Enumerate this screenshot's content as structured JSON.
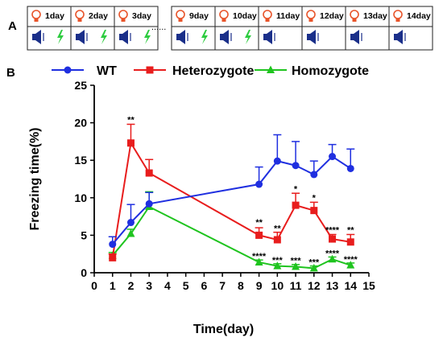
{
  "panel_labels": {
    "a": "A",
    "b": "B"
  },
  "timeline": {
    "days_left": [
      "1day",
      "2day",
      "3day"
    ],
    "separator": "......",
    "days_right": [
      "9day",
      "10day",
      "11day",
      "12day",
      "13day",
      "14day"
    ],
    "icons": {
      "top": "lightbulb-icon",
      "bottom_left": "speaker-icon",
      "bottom_right_shock": "lightning-icon"
    },
    "shock_days": [
      "1day",
      "2day",
      "3day",
      "9day",
      "10day"
    ],
    "colors": {
      "bulb": "#e8542a",
      "speaker": "#1a2f8a",
      "shock": "#2ecc40",
      "border": "#222222"
    }
  },
  "chart_data": {
    "type": "line",
    "xlabel": "Time(day)",
    "ylabel": "Freezing time(%)",
    "xlim": [
      0,
      15
    ],
    "ylim": [
      0,
      25
    ],
    "xticks": [
      0,
      1,
      2,
      3,
      4,
      5,
      6,
      7,
      8,
      9,
      10,
      11,
      12,
      13,
      14,
      15
    ],
    "yticks": [
      0,
      5,
      10,
      15,
      20,
      25
    ],
    "legend_position": "top",
    "grid": false,
    "x": [
      1,
      2,
      3,
      9,
      10,
      11,
      12,
      13,
      14
    ],
    "series": [
      {
        "name": "WT",
        "color": "#1f2fe0",
        "marker": "circle",
        "values": [
          3.8,
          6.7,
          9.2,
          11.8,
          14.9,
          14.3,
          13.1,
          15.5,
          13.9
        ],
        "errors": [
          1.0,
          2.4,
          1.5,
          2.3,
          3.5,
          3.2,
          1.8,
          1.6,
          2.6
        ]
      },
      {
        "name": "Heterozygote",
        "color": "#e81d1d",
        "marker": "square",
        "values": [
          2.0,
          17.3,
          13.3,
          5.0,
          4.4,
          9.0,
          8.3,
          4.5,
          4.1
        ],
        "errors": [
          0.5,
          2.5,
          1.8,
          1.0,
          1.0,
          1.6,
          1.1,
          0.6,
          1.0
        ]
      },
      {
        "name": "Homozygote",
        "color": "#1fc41f",
        "marker": "triangle",
        "values": [
          2.3,
          5.2,
          8.8,
          1.4,
          0.9,
          0.8,
          0.6,
          1.8,
          1.0
        ],
        "errors": [
          0.4,
          0.6,
          2.0,
          0.3,
          0.3,
          0.3,
          0.3,
          0.3,
          0.3
        ]
      }
    ],
    "annotations": [
      {
        "x": 2,
        "y": 19.9,
        "text": "**"
      },
      {
        "x": 9,
        "y": 6.2,
        "text": "**"
      },
      {
        "x": 10,
        "y": 5.4,
        "text": "**"
      },
      {
        "x": 11,
        "y": 10.7,
        "text": "*"
      },
      {
        "x": 12,
        "y": 9.5,
        "text": "*"
      },
      {
        "x": 13,
        "y": 5.2,
        "text": "****"
      },
      {
        "x": 14,
        "y": 5.2,
        "text": "**"
      },
      {
        "x": 9,
        "y": 1.7,
        "text": "****"
      },
      {
        "x": 10,
        "y": 1.2,
        "text": "***"
      },
      {
        "x": 11,
        "y": 1.1,
        "text": "***"
      },
      {
        "x": 12,
        "y": 0.9,
        "text": "***"
      },
      {
        "x": 13,
        "y": 2.1,
        "text": "****"
      },
      {
        "x": 14,
        "y": 1.3,
        "text": "****"
      }
    ]
  }
}
